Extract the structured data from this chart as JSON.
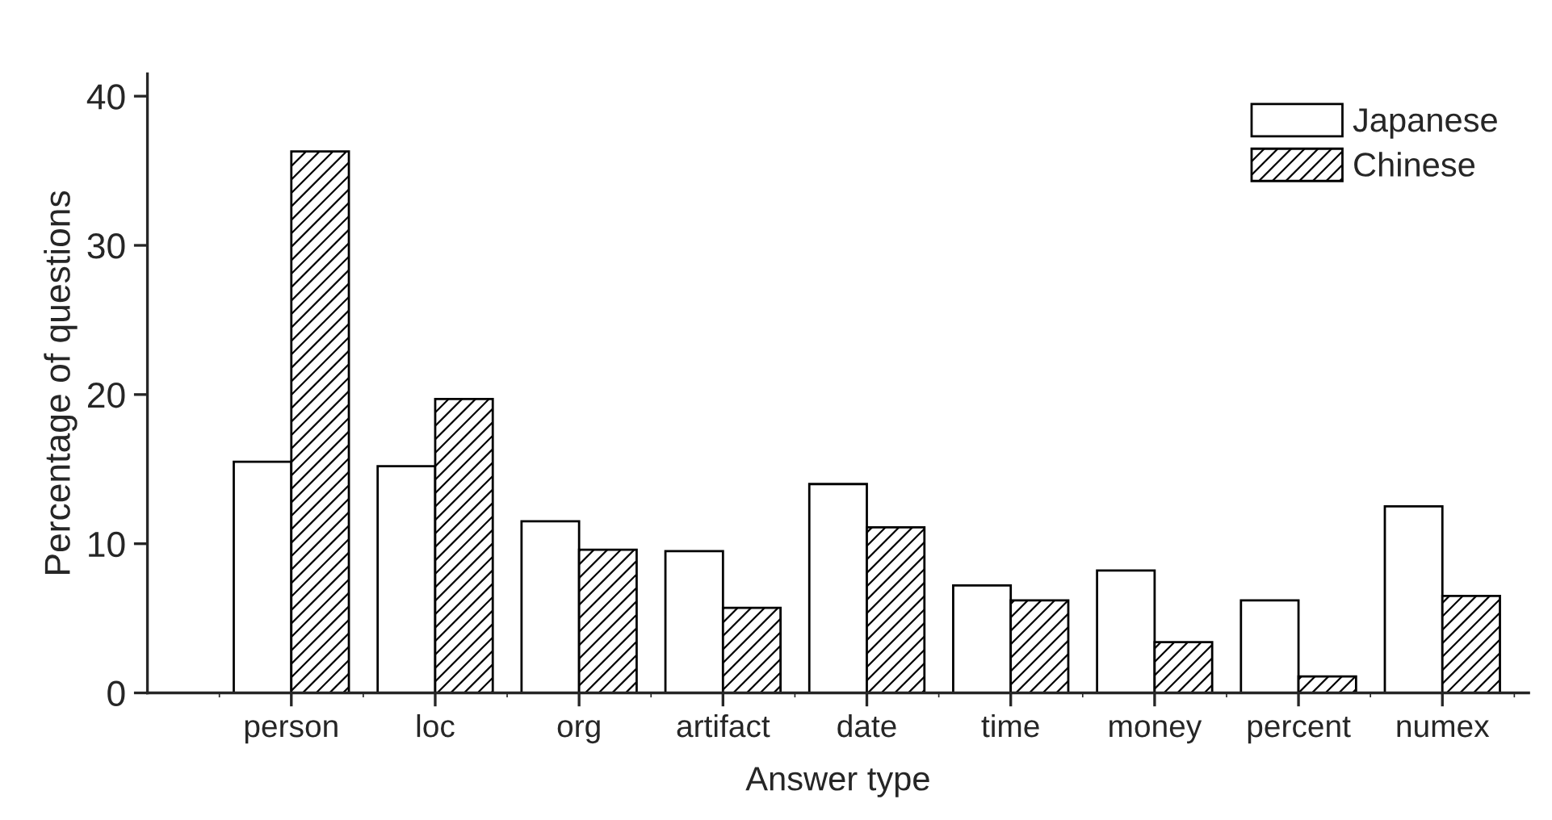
{
  "chart_data": {
    "type": "bar",
    "xlabel": "Answer type",
    "ylabel": "Percentage of questions",
    "categories": [
      "person",
      "loc",
      "org",
      "artifact",
      "date",
      "time",
      "money",
      "percent",
      "numex"
    ],
    "series": [
      {
        "name": "Japanese",
        "color": "#ffffff",
        "values": [
          15.5,
          15.2,
          11.5,
          9.5,
          14.0,
          7.2,
          8.2,
          6.2,
          12.5
        ]
      },
      {
        "name": "Chinese",
        "color": "#000000",
        "values": [
          36.3,
          19.7,
          9.6,
          5.7,
          11.1,
          6.2,
          3.4,
          1.1,
          6.5
        ]
      }
    ],
    "ylim": [
      0,
      41.5
    ],
    "yticks": [
      0,
      10,
      20,
      30,
      40
    ],
    "grid": false,
    "legend": "top right"
  }
}
